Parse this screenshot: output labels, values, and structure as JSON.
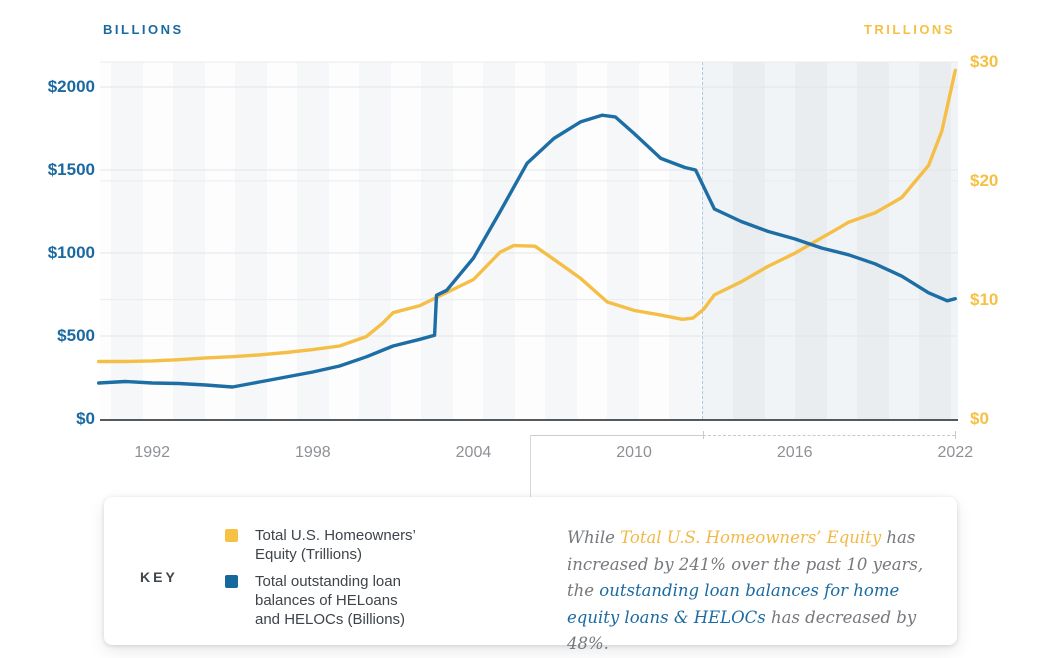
{
  "chart_data": {
    "type": "line",
    "title": "",
    "x_range": [
      1990.05,
      2022.1
    ],
    "x_ticks": [
      1992,
      1998,
      2004,
      2010,
      2016,
      2022
    ],
    "left_axis": {
      "title": "BILLIONS",
      "ylim": [
        0,
        2000
      ],
      "ticks": [
        0,
        500,
        1000,
        1500,
        2000
      ],
      "tick_prefix": "$",
      "color": "#1a69a2"
    },
    "right_axis": {
      "title": "TRILLIONS",
      "ylim": [
        0,
        30
      ],
      "ticks": [
        0,
        10,
        20,
        30
      ],
      "tick_prefix": "$",
      "color": "#f6c044"
    },
    "highlight_region": {
      "x_start": 2012.55,
      "x_end": 2022.1,
      "label": "past 10 years"
    },
    "grid": true,
    "legend_position": "bottom-card",
    "series": [
      {
        "name": "Total U.S. Homeowners' Equity (Trillions)",
        "axis": "right",
        "color": "#f5bf47",
        "points": [
          [
            1990,
            4.8
          ],
          [
            1991,
            4.8
          ],
          [
            1992,
            4.85
          ],
          [
            1993,
            4.95
          ],
          [
            1994,
            5.1
          ],
          [
            1995,
            5.2
          ],
          [
            1996,
            5.35
          ],
          [
            1997,
            5.55
          ],
          [
            1998,
            5.8
          ],
          [
            1999,
            6.1
          ],
          [
            2000,
            6.9
          ],
          [
            2000.6,
            8.0
          ],
          [
            2001,
            8.9
          ],
          [
            2002,
            9.5
          ],
          [
            2003,
            10.6
          ],
          [
            2004,
            11.7
          ],
          [
            2005,
            14.0
          ],
          [
            2005.5,
            14.55
          ],
          [
            2006.3,
            14.5
          ],
          [
            2007,
            13.4
          ],
          [
            2008,
            11.8
          ],
          [
            2009,
            9.8
          ],
          [
            2010,
            9.1
          ],
          [
            2011,
            8.7
          ],
          [
            2011.8,
            8.35
          ],
          [
            2012.2,
            8.45
          ],
          [
            2012.6,
            9.2
          ],
          [
            2013,
            10.4
          ],
          [
            2014,
            11.5
          ],
          [
            2015,
            12.8
          ],
          [
            2016,
            13.9
          ],
          [
            2017,
            15.2
          ],
          [
            2017.7,
            16.1
          ],
          [
            2018,
            16.5
          ],
          [
            2019,
            17.3
          ],
          [
            2020,
            18.6
          ],
          [
            2021,
            21.3
          ],
          [
            2021.5,
            24.2
          ],
          [
            2022,
            29.3
          ]
        ]
      },
      {
        "name": "Total outstanding loan balances of HELoans and HELOCs (Billions)",
        "axis": "left",
        "color": "#1e6ea6",
        "points": [
          [
            1990,
            217
          ],
          [
            1991,
            226
          ],
          [
            1992,
            217
          ],
          [
            1993,
            214
          ],
          [
            1994,
            205
          ],
          [
            1995,
            193
          ],
          [
            1996,
            223
          ],
          [
            1997,
            253
          ],
          [
            1998,
            283
          ],
          [
            1999,
            319
          ],
          [
            2000,
            375
          ],
          [
            2001,
            440
          ],
          [
            2002,
            480
          ],
          [
            2002.55,
            505
          ],
          [
            2002.62,
            745
          ],
          [
            2003,
            775
          ],
          [
            2004,
            970
          ],
          [
            2005,
            1250
          ],
          [
            2006,
            1540
          ],
          [
            2007,
            1690
          ],
          [
            2008,
            1790
          ],
          [
            2008.8,
            1830
          ],
          [
            2009.3,
            1820
          ],
          [
            2010,
            1720
          ],
          [
            2011,
            1570
          ],
          [
            2011.9,
            1515
          ],
          [
            2012.3,
            1500
          ],
          [
            2013,
            1265
          ],
          [
            2014,
            1190
          ],
          [
            2015,
            1130
          ],
          [
            2016,
            1085
          ],
          [
            2017,
            1030
          ],
          [
            2018,
            990
          ],
          [
            2019,
            935
          ],
          [
            2020,
            860
          ],
          [
            2021,
            760
          ],
          [
            2021.7,
            712
          ],
          [
            2022,
            725
          ]
        ]
      }
    ]
  },
  "key": {
    "label": "KEY",
    "items": [
      {
        "swatch_color": "#f6c245",
        "label": "Total U.S. Homeowners' Equity (Trillions)",
        "lines": [
          "Total U.S. Homeowners’",
          "Equity (Trillions)"
        ]
      },
      {
        "swatch_color": "#16679e",
        "label": "Total outstanding loan balances of HELoans and HELOCs (Billions)",
        "lines": [
          "Total outstanding loan",
          "balances of HELoans",
          "and HELOCs (Billions)"
        ]
      }
    ]
  },
  "annotation": {
    "segments": [
      {
        "text": "While ",
        "style": "plain"
      },
      {
        "text": "Total U.S. Homeowners’ Equity",
        "style": "equity"
      },
      {
        "text": " has increased by 241% over the past 10 years, the ",
        "style": "plain"
      },
      {
        "text": "outstanding loan balances for home equity loans & HELOCs",
        "style": "loans"
      },
      {
        "text": " has decreased by 48%.",
        "style": "plain"
      }
    ]
  }
}
